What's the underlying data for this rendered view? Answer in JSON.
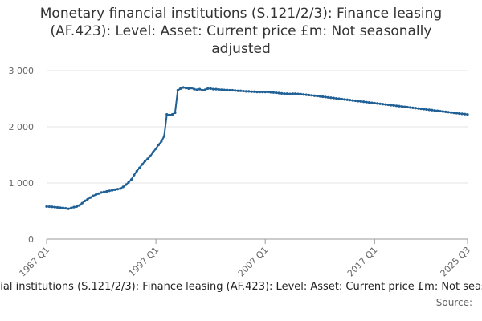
{
  "chart_data": {
    "type": "line",
    "title": "Monetary financial institutions (S.121/2/3): Finance leasing (AF.423): Level: Asset: Current price £m: Not seasonally adjusted",
    "source": "Source:",
    "categories": [
      "1987 Q1",
      null,
      null,
      null,
      null,
      null,
      null,
      null,
      null,
      null,
      null,
      null,
      null,
      null,
      null,
      null,
      null,
      null,
      null,
      null,
      null,
      null,
      null,
      null,
      null,
      null,
      null,
      null,
      null,
      null,
      null,
      null,
      null,
      null,
      null,
      null,
      null,
      null,
      null,
      null,
      "1997 Q1",
      null,
      null,
      null,
      null,
      null,
      null,
      null,
      null,
      null,
      null,
      null,
      null,
      null,
      null,
      null,
      null,
      null,
      null,
      null,
      null,
      null,
      null,
      null,
      null,
      null,
      null,
      null,
      null,
      null,
      null,
      null,
      null,
      null,
      null,
      null,
      null,
      null,
      null,
      null,
      "2007 Q1",
      null,
      null,
      null,
      null,
      null,
      null,
      null,
      null,
      null,
      null,
      null,
      null,
      null,
      null,
      null,
      null,
      null,
      null,
      null,
      null,
      null,
      null,
      null,
      null,
      null,
      null,
      null,
      null,
      null,
      null,
      null,
      null,
      null,
      null,
      null,
      null,
      null,
      null,
      null,
      "2017 Q1",
      null,
      null,
      null,
      null,
      null,
      null,
      null,
      null,
      null,
      null,
      null,
      null,
      null,
      null,
      null,
      null,
      null,
      null,
      null,
      null,
      null,
      null,
      null,
      null,
      null,
      null,
      null,
      null,
      null,
      null,
      null,
      null,
      null,
      "2025 Q3"
    ],
    "series": [
      {
        "color": "#206095",
        "values": [
          580,
          578,
          575,
          570,
          565,
          560,
          555,
          548,
          540,
          555,
          570,
          580,
          600,
          640,
          680,
          710,
          740,
          770,
          790,
          810,
          830,
          840,
          850,
          860,
          870,
          880,
          890,
          900,
          930,
          970,
          1010,
          1060,
          1140,
          1210,
          1270,
          1330,
          1390,
          1430,
          1480,
          1550,
          1610,
          1680,
          1740,
          1830,
          2220,
          2210,
          2220,
          2250,
          2650,
          2680,
          2700,
          2690,
          2680,
          2690,
          2670,
          2660,
          2670,
          2650,
          2660,
          2680,
          2680,
          2670,
          2670,
          2665,
          2660,
          2655,
          2655,
          2650,
          2650,
          2645,
          2640,
          2640,
          2635,
          2630,
          2630,
          2625,
          2625,
          2620,
          2620,
          2620,
          2620,
          2620,
          2615,
          2610,
          2605,
          2600,
          2595,
          2590,
          2590,
          2585,
          2590,
          2590,
          2585,
          2580,
          2575,
          2570,
          2565,
          2560,
          2554,
          2548,
          2542,
          2536,
          2530,
          2524,
          2518,
          2512,
          2506,
          2500,
          2494,
          2488,
          2482,
          2476,
          2470,
          2464,
          2458,
          2452,
          2446,
          2440,
          2434,
          2428,
          2422,
          2416,
          2410,
          2404,
          2398,
          2392,
          2386,
          2380,
          2374,
          2368,
          2362,
          2356,
          2350,
          2344,
          2338,
          2332,
          2326,
          2320,
          2314,
          2308,
          2302,
          2296,
          2290,
          2284,
          2278,
          2272,
          2266,
          2260,
          2254,
          2248,
          2242,
          2236,
          2230,
          2225,
          2220
        ]
      }
    ],
    "ylim": [
      0,
      3000
    ],
    "yticks": [
      0,
      {
        "value": 1000,
        "label": "1 000"
      },
      {
        "value": 2000,
        "label": "2 000"
      },
      {
        "value": 3000,
        "label": "3 000"
      }
    ],
    "grid": true
  }
}
